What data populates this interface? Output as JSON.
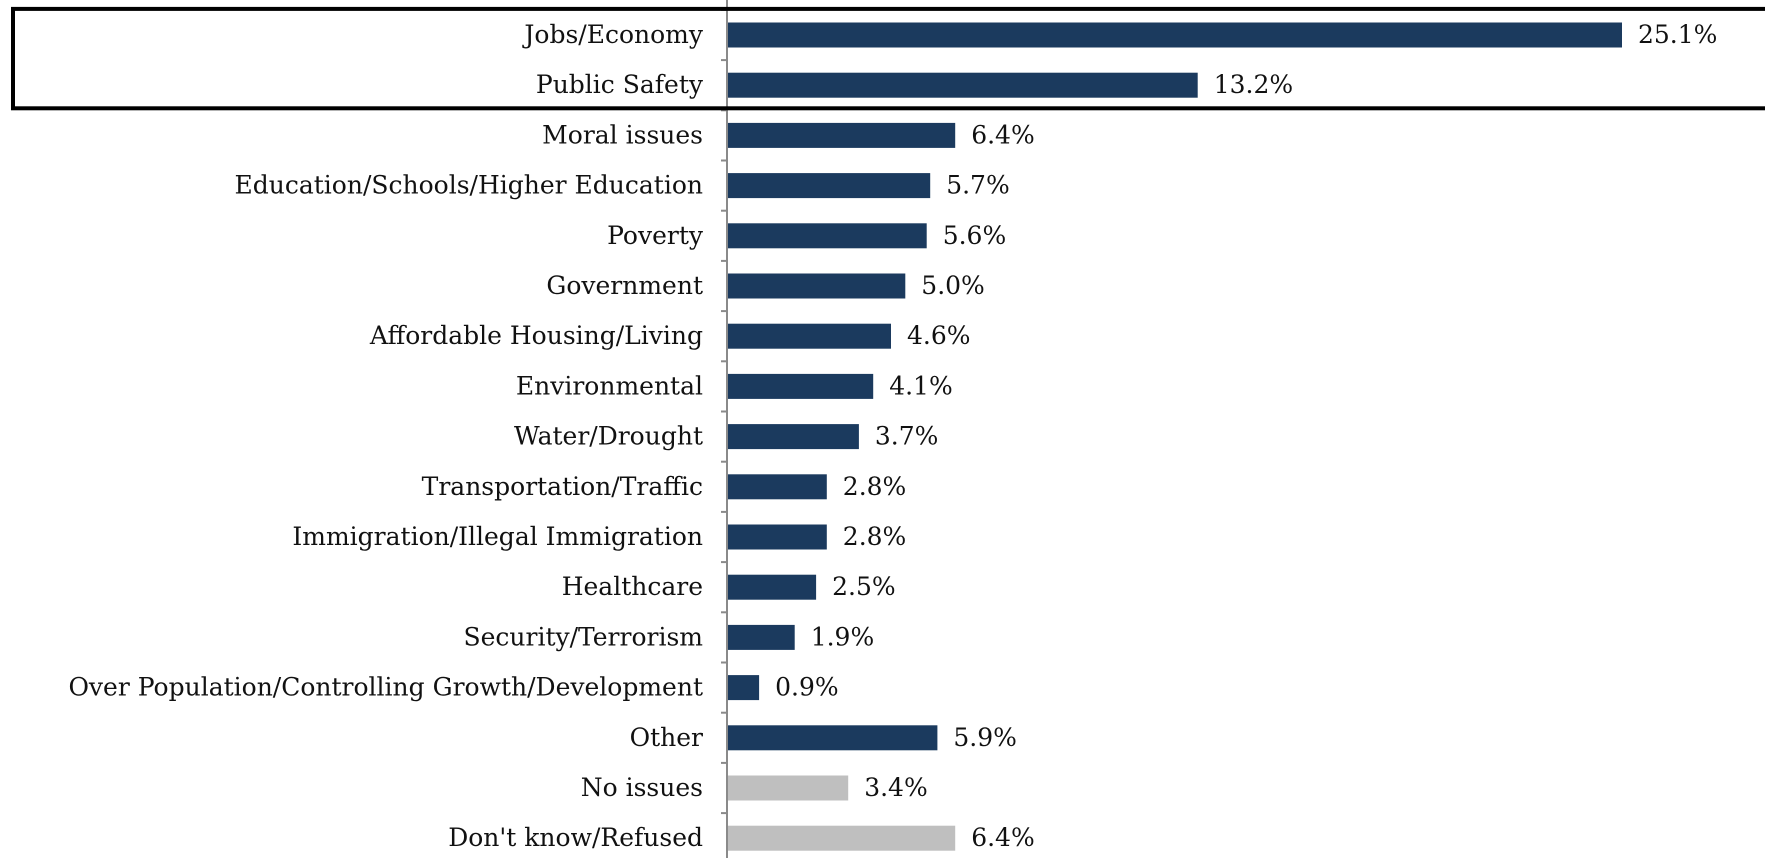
{
  "chart_data": {
    "type": "bar",
    "orientation": "horizontal",
    "title": "",
    "xlabel": "",
    "ylabel": "",
    "xlim": [
      0,
      25.1
    ],
    "grid": false,
    "legend": "none",
    "highlight_box_categories": [
      "Jobs/Economy",
      "Public Safety"
    ],
    "colors": {
      "primary": "#1b3a5e",
      "secondary": "#bfbfbf",
      "axis": "#8a8a8a",
      "highlight_box": "#000000"
    },
    "categories": [
      "Jobs/Economy",
      "Public Safety",
      "Moral issues",
      "Education/Schools/Higher Education",
      "Poverty",
      "Government",
      "Affordable Housing/Living",
      "Environmental",
      "Water/Drought",
      "Transportation/Traffic",
      "Immigration/Illegal Immigration",
      "Healthcare",
      "Security/Terrorism",
      "Over Population/Controlling Growth/Development",
      "Other",
      "No issues",
      "Don't know/Refused"
    ],
    "values": [
      25.1,
      13.2,
      6.4,
      5.7,
      5.6,
      5.0,
      4.6,
      4.1,
      3.7,
      2.8,
      2.8,
      2.5,
      1.9,
      0.9,
      5.9,
      3.4,
      6.4
    ],
    "value_labels": [
      "25.1%",
      "13.2%",
      "6.4%",
      "5.7%",
      "5.6%",
      "5.0%",
      "4.6%",
      "4.1%",
      "3.7%",
      "2.8%",
      "2.8%",
      "2.5%",
      "1.9%",
      "0.9%",
      "5.9%",
      "3.4%",
      "6.4%"
    ],
    "bar_color_keys": [
      "primary",
      "primary",
      "primary",
      "primary",
      "primary",
      "primary",
      "primary",
      "primary",
      "primary",
      "primary",
      "primary",
      "primary",
      "primary",
      "primary",
      "primary",
      "secondary",
      "secondary"
    ]
  }
}
